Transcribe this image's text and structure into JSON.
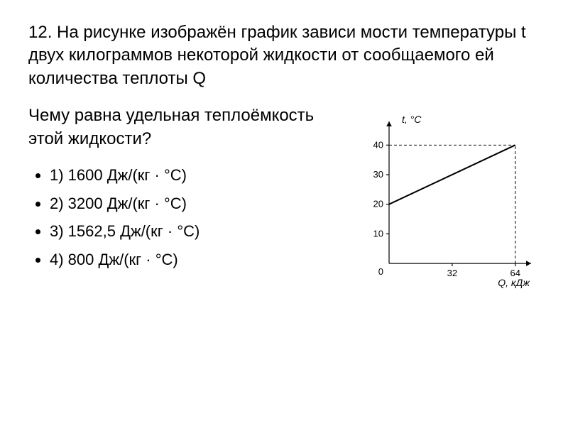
{
  "problem": {
    "number": "12.",
    "text": "На рисунке изображён график зависи мости температуры t двух килограммов некоторой жидкости от сообщаемого ей количества теплоты Q"
  },
  "question": "Чему равна удельная теплоёмкость этой жидкости?",
  "options": [
    "1) 1600 Дж/(кг · °С)",
    "2) 3200 Дж/(кг · °С)",
    "3) 1562,5 Дж/(кг · °С)",
    "4) 800 Дж/(кг · °С)"
  ],
  "chart": {
    "type": "line",
    "x_label": "Q, кДж",
    "y_label": "t, °С",
    "x_ticks": [
      32,
      64
    ],
    "y_ticks": [
      10,
      20,
      30,
      40
    ],
    "xlim": [
      0,
      72
    ],
    "ylim": [
      0,
      48
    ],
    "line": {
      "x": [
        0,
        64
      ],
      "y": [
        20,
        40
      ],
      "color": "#000000",
      "stroke_width": 2
    },
    "axis_color": "#000000",
    "tick_font_size": 13,
    "label_font_size": 14,
    "axis_stroke_width": 1.2,
    "arrow_size": 7
  }
}
